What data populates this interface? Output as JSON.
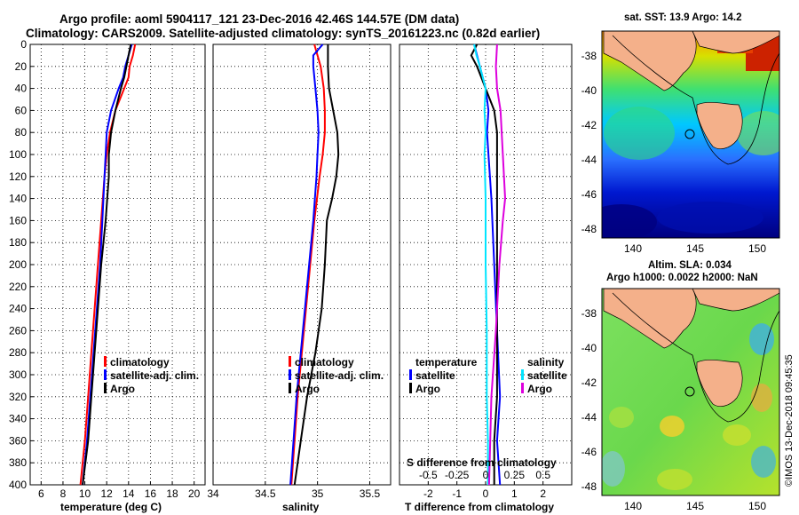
{
  "chart_data": [
    {
      "type": "line",
      "id": "temperature-profile",
      "title": "Argo profile: aoml 5904117_121 23-Dec-2016 42.46S 144.57E (DM data)",
      "subtitle": "Climatology: CARS2009. Satellite-adjusted climatology: synTS_20161223.nc (0.82d earlier)",
      "xlabel": "temperature (deg C)",
      "ylabel": "",
      "xlim": [
        5,
        21
      ],
      "ylim": [
        400,
        0
      ],
      "xticks": [
        "6",
        "8",
        "10",
        "12",
        "14",
        "16",
        "18",
        "20"
      ],
      "yticks": [
        "0",
        "20",
        "40",
        "60",
        "80",
        "100",
        "120",
        "140",
        "160",
        "180",
        "200",
        "220",
        "240",
        "260",
        "280",
        "300",
        "320",
        "340",
        "360",
        "380",
        "400"
      ],
      "grid": true,
      "legend": [
        "climatology",
        "satellite-adj. clim.",
        "Argo"
      ],
      "series": [
        {
          "name": "climatology",
          "color": "#ff0000",
          "depth": [
            0,
            10,
            20,
            30,
            40,
            60,
            80,
            100,
            120,
            160,
            200,
            240,
            280,
            320,
            360,
            400
          ],
          "values": [
            14.6,
            14.4,
            14.1,
            14.0,
            13.6,
            12.8,
            12.3,
            12.0,
            11.8,
            11.5,
            11.2,
            10.9,
            10.6,
            10.3,
            10.0,
            9.6
          ]
        },
        {
          "name": "satellite-adj. clim.",
          "color": "#0000ff",
          "depth": [
            0,
            10,
            20,
            30,
            40,
            60,
            80,
            100,
            120,
            160,
            200,
            240,
            280,
            320,
            360,
            400
          ],
          "values": [
            14.3,
            14.0,
            13.7,
            13.5,
            13.1,
            12.4,
            12.0,
            11.9,
            11.8,
            11.6,
            11.4,
            11.1,
            10.8,
            10.5,
            10.2,
            9.8
          ]
        },
        {
          "name": "Argo",
          "color": "#000000",
          "depth": [
            0,
            10,
            20,
            30,
            40,
            60,
            80,
            100,
            120,
            160,
            200,
            240,
            280,
            320,
            360,
            400
          ],
          "values": [
            14.2,
            14.0,
            13.8,
            13.6,
            13.3,
            12.8,
            12.4,
            12.2,
            12.2,
            11.9,
            11.5,
            11.2,
            10.9,
            10.6,
            10.3,
            9.8
          ]
        }
      ]
    },
    {
      "type": "line",
      "id": "salinity-profile",
      "xlabel": "salinity",
      "xlim": [
        34,
        35.7
      ],
      "ylim": [
        400,
        0
      ],
      "xticks": [
        "34",
        "34.5",
        "35",
        "35.5"
      ],
      "grid": true,
      "legend": [
        "climatology",
        "satellite-adj. clim.",
        "Argo"
      ],
      "series": [
        {
          "name": "climatology",
          "color": "#ff0000",
          "depth": [
            0,
            20,
            40,
            60,
            80,
            100,
            120,
            160,
            200,
            240,
            280,
            320,
            360,
            400
          ],
          "values": [
            34.97,
            35.03,
            35.06,
            35.07,
            35.07,
            35.05,
            35.02,
            34.97,
            34.93,
            34.89,
            34.85,
            34.81,
            34.78,
            34.75
          ]
        },
        {
          "name": "satellite-adj. clim.",
          "color": "#0000ff",
          "depth": [
            0,
            10,
            20,
            40,
            60,
            80,
            100,
            120,
            160,
            200,
            240,
            280,
            320,
            360,
            400
          ],
          "values": [
            35.05,
            34.96,
            34.96,
            34.98,
            35.0,
            35.01,
            35.0,
            34.99,
            34.96,
            34.92,
            34.88,
            34.84,
            34.8,
            34.77,
            34.74
          ]
        },
        {
          "name": "Argo",
          "color": "#000000",
          "depth": [
            0,
            20,
            40,
            60,
            80,
            100,
            120,
            140,
            160,
            200,
            240,
            280,
            320,
            360,
            400
          ],
          "values": [
            35.1,
            35.1,
            35.11,
            35.15,
            35.19,
            35.2,
            35.18,
            35.14,
            35.09,
            35.07,
            35.04,
            34.98,
            34.9,
            34.84,
            34.78
          ]
        }
      ]
    },
    {
      "type": "line",
      "id": "difference-profile",
      "xlabel": "T difference from climatology",
      "top_xlabel": "S difference from climatology",
      "xlim": [
        -3,
        3
      ],
      "ylim": [
        400,
        0
      ],
      "xticks": [
        "-2",
        "-1",
        "0",
        "1",
        "2"
      ],
      "top_xticks": [
        "-0.5",
        "-0.25",
        "0",
        "0.25",
        "0.5"
      ],
      "grid": true,
      "legend_temperature": {
        "title": "temperature",
        "entries": [
          "satellite",
          "Argo"
        ]
      },
      "legend_salinity": {
        "title": "salinity",
        "entries": [
          "satellite",
          "Argo"
        ]
      },
      "series": [
        {
          "name": "temperature satellite",
          "color": "#0000ff",
          "depth": [
            0,
            20,
            40,
            60,
            80,
            100,
            140,
            200,
            260,
            320,
            360,
            400
          ],
          "values": [
            -0.4,
            -0.2,
            0.0,
            0.1,
            0.05,
            0.1,
            0.2,
            0.3,
            0.4,
            0.5,
            0.4,
            0.5
          ]
        },
        {
          "name": "temperature Argo",
          "color": "#000000",
          "depth": [
            0,
            10,
            20,
            40,
            60,
            80,
            100,
            140,
            200,
            260,
            320,
            360,
            400
          ],
          "values": [
            -0.3,
            -0.5,
            -0.3,
            0.0,
            0.3,
            0.4,
            0.4,
            0.4,
            0.4,
            0.4,
            0.4,
            0.3,
            0.3
          ]
        },
        {
          "name": "salinity satellite",
          "color": "#00e5ff",
          "depth": [
            0,
            10,
            20,
            40,
            60,
            80,
            100,
            140,
            200,
            260,
            320,
            360,
            400
          ],
          "values": [
            -0.1,
            -0.08,
            -0.05,
            0.0,
            -0.01,
            0.0,
            -0.01,
            0.0,
            0.0,
            0.01,
            0.01,
            0.02,
            0.02
          ]
        },
        {
          "name": "salinity Argo",
          "color": "#dd00dd",
          "depth": [
            0,
            20,
            40,
            60,
            80,
            100,
            120,
            140,
            160,
            200,
            260,
            320,
            360,
            400
          ],
          "values": [
            0.1,
            0.09,
            0.1,
            0.13,
            0.14,
            0.15,
            0.16,
            0.17,
            0.15,
            0.12,
            0.09,
            0.05,
            0.04,
            0.03
          ]
        }
      ]
    }
  ],
  "maps": {
    "sst": {
      "title": "sat. SST: 13.9 Argo: 14.2",
      "yticks": [
        "-38",
        "-40",
        "-42",
        "-44",
        "-46",
        "-48"
      ],
      "xticks": [
        "140",
        "145",
        "150"
      ]
    },
    "sla": {
      "title_line1": "Altim. SLA: 0.034",
      "title_line2": "Argo h1000: 0.0022 h2000: NaN",
      "yticks": [
        "-38",
        "-40",
        "-42",
        "-44",
        "-46",
        "-48"
      ],
      "xticks": [
        "140",
        "145",
        "150"
      ]
    }
  },
  "credit": "©IMOS 13-Dec-2018 09:45:35"
}
